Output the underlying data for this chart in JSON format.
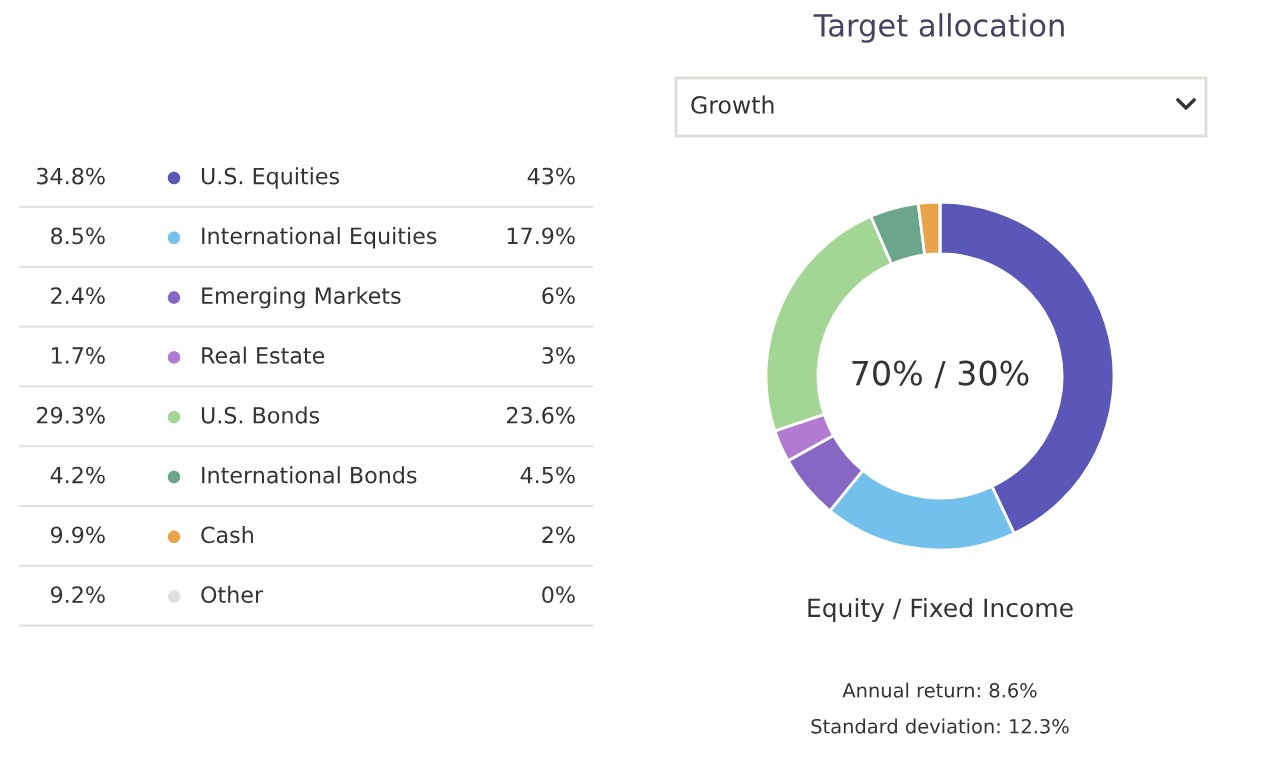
{
  "chart_data": {
    "type": "donut",
    "title": "Target allocation",
    "categories": [
      "U.S. Equities",
      "International Equities",
      "Emerging Markets",
      "Real Estate",
      "U.S. Bonds",
      "International Bonds",
      "Cash",
      "Other"
    ],
    "values": [
      43,
      17.9,
      6,
      3,
      23.6,
      4.5,
      2,
      0
    ],
    "value_labels": [
      "43%",
      "17.9%",
      "6%",
      "3%",
      "23.6%",
      "4.5%",
      "2%",
      "0%"
    ],
    "colors": [
      "#5b57b8",
      "#74c0ec",
      "#8668c4",
      "#b07bd0",
      "#a3d695",
      "#6aa58c",
      "#e8a24a",
      "#e0e0e0"
    ],
    "legend": "left",
    "annotations": [
      "Growth",
      "70% / 30%",
      "Equity / Fixed Income",
      "Annual return: 8.6%",
      "Standard deviation: 12.3%",
      "34.8%",
      "8.5%",
      "2.4%",
      "1.7%",
      "29.3%",
      "4.2%",
      "9.9%",
      "9.2%"
    ]
  }
}
